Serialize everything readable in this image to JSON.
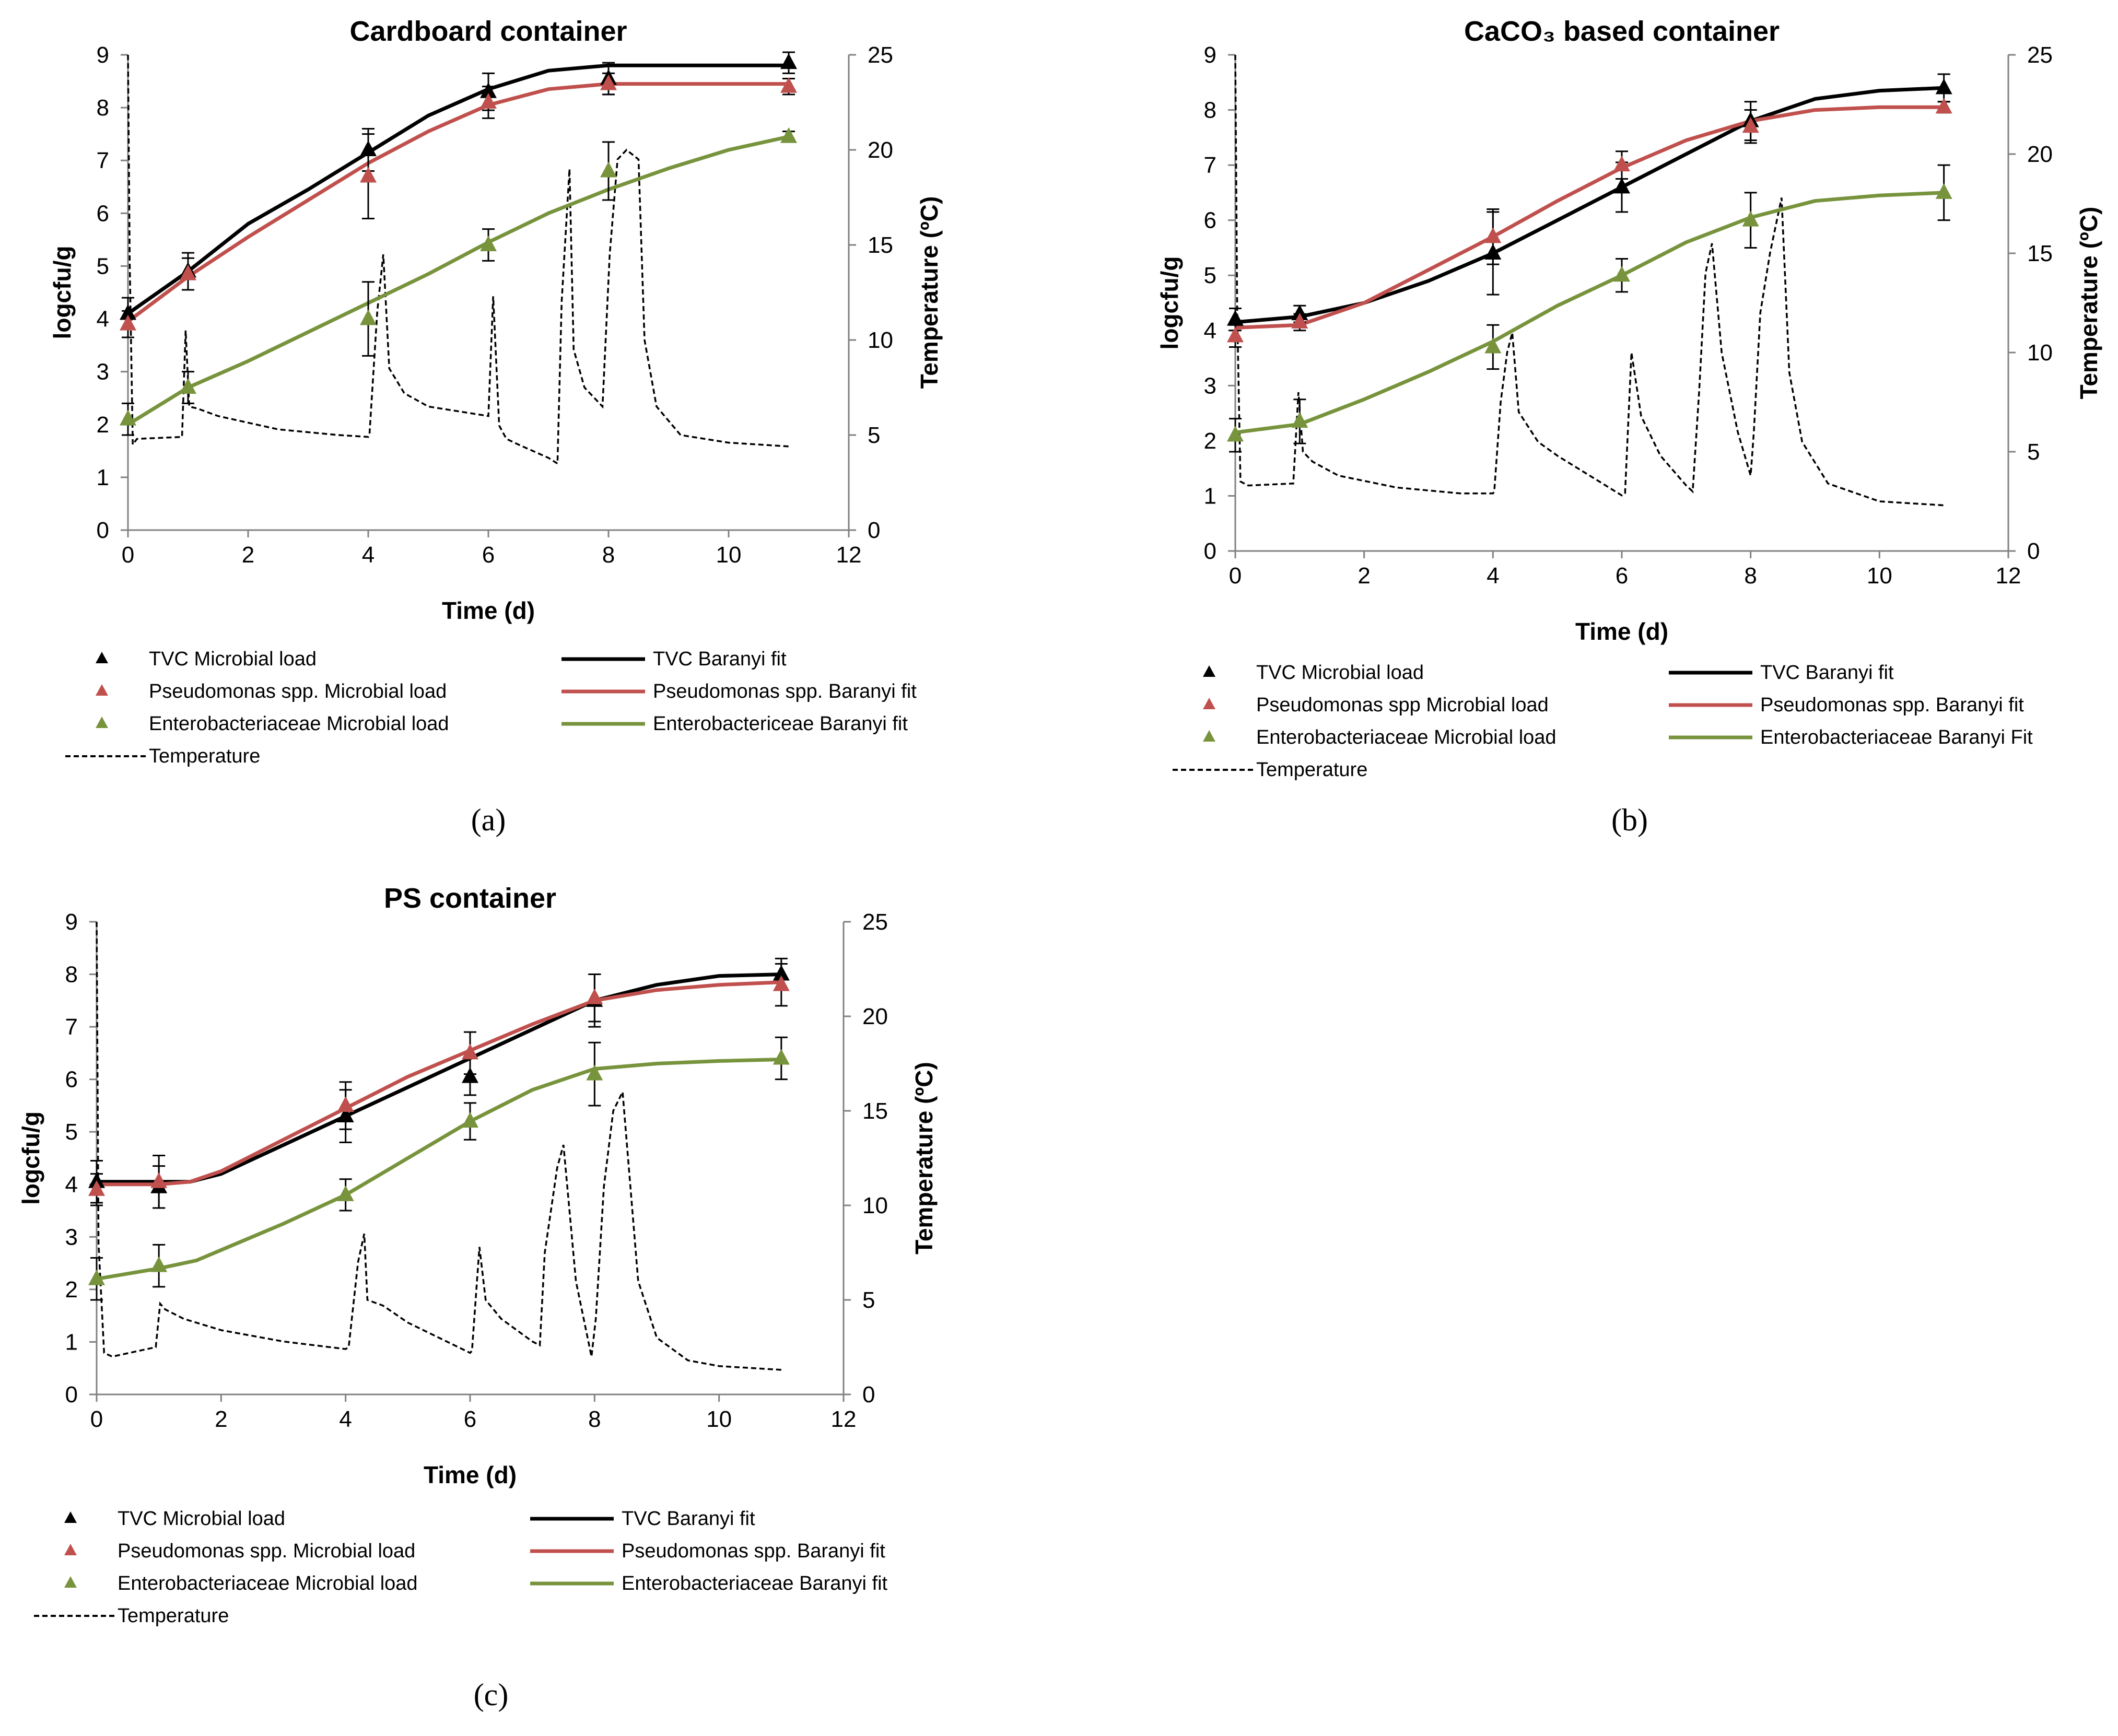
{
  "colors": {
    "tvc": "#000000",
    "pseudomonas": "#c0504d",
    "entero": "#77933c",
    "temperature": "#000000",
    "axis": "#808080"
  },
  "chart_data": [
    {
      "type": "line",
      "panel": "(a)",
      "title": "Cardboard container",
      "xlabel": "Time (d)",
      "ylabel": "logcfu/g",
      "y2label": "Temperature (ºC)",
      "xlim": [
        0,
        12
      ],
      "ylim": [
        0,
        9
      ],
      "y2lim": [
        0,
        25
      ],
      "x_ticks": [
        "0",
        "2",
        "4",
        "6",
        "8",
        "10",
        "12"
      ],
      "y_ticks": [
        "0",
        "1",
        "2",
        "3",
        "4",
        "5",
        "6",
        "7",
        "8",
        "9"
      ],
      "y2_ticks": [
        "0",
        "5",
        "10",
        "15",
        "20",
        "25"
      ],
      "x": [
        0,
        1,
        4,
        6,
        8,
        11
      ],
      "points": [
        {
          "name": "TVC Microbial load",
          "color": "#000000",
          "y": [
            4.1,
            4.9,
            7.2,
            8.3,
            8.55,
            8.85
          ],
          "err": [
            0.3,
            0.35,
            0.4,
            0.35,
            0.3,
            0.2
          ]
        },
        {
          "name": "Pseudomonas spp. Microbial load",
          "color": "#c0504d",
          "y": [
            3.9,
            4.85,
            6.7,
            8.1,
            8.45,
            8.4
          ],
          "err": [
            0.25,
            0.3,
            0.8,
            0.3,
            0.2,
            0.15
          ]
        },
        {
          "name": "Enterobacteriaceae Microbial load",
          "color": "#77933c",
          "y": [
            2.1,
            2.7,
            4.0,
            5.4,
            6.8,
            7.45
          ],
          "err": [
            0.3,
            0.3,
            0.7,
            0.3,
            0.55,
            0.1
          ]
        }
      ],
      "fits": [
        {
          "name": "TVC Baranyi fit",
          "color": "#000000",
          "x": [
            0,
            1,
            2,
            3,
            4,
            5,
            6,
            7,
            8,
            9,
            10,
            11
          ],
          "y": [
            4.1,
            4.9,
            5.8,
            6.45,
            7.15,
            7.85,
            8.35,
            8.7,
            8.8,
            8.8,
            8.8,
            8.8
          ]
        },
        {
          "name": "Pseudomonas spp. Baranyi fit",
          "color": "#c0504d",
          "x": [
            0,
            1,
            2,
            3,
            4,
            5,
            6,
            7,
            8,
            9,
            10,
            11
          ],
          "y": [
            3.95,
            4.8,
            5.55,
            6.25,
            6.95,
            7.55,
            8.05,
            8.35,
            8.45,
            8.45,
            8.45,
            8.45
          ]
        },
        {
          "name": "Enterobactericeae Baranyi fit",
          "color": "#77933c",
          "x": [
            0,
            1,
            2,
            3,
            4,
            5,
            6,
            7,
            8,
            9,
            10,
            11
          ],
          "y": [
            2.0,
            2.7,
            3.2,
            3.75,
            4.3,
            4.85,
            5.45,
            6.0,
            6.45,
            6.85,
            7.2,
            7.45
          ]
        }
      ],
      "temperature": {
        "name": "Temperature",
        "x": [
          0,
          0.03,
          0.08,
          0.15,
          0.9,
          0.96,
          1.02,
          1.15,
          1.5,
          2.5,
          3.5,
          4.0,
          4.02,
          4.15,
          4.25,
          4.35,
          4.6,
          5.0,
          6.0,
          6.08,
          6.18,
          6.3,
          6.5,
          7.0,
          7.15,
          7.22,
          7.35,
          7.42,
          7.6,
          7.9,
          8.02,
          8.15,
          8.3,
          8.5,
          8.6,
          8.8,
          9.2,
          10,
          11
        ],
        "y": [
          25,
          14,
          4.5,
          4.8,
          4.9,
          10.5,
          6.5,
          6.4,
          6.0,
          5.3,
          5.0,
          4.9,
          5.0,
          11.5,
          14.5,
          8.5,
          7.2,
          6.5,
          6.0,
          12.3,
          5.5,
          4.8,
          4.5,
          3.8,
          3.5,
          12.0,
          19.0,
          9.5,
          7.5,
          6.5,
          14.5,
          19.5,
          20.0,
          19.5,
          10.0,
          6.5,
          5.0,
          4.6,
          4.4
        ]
      }
    },
    {
      "type": "line",
      "panel": "(b)",
      "title": "CaCO₃ based container",
      "xlabel": "Time (d)",
      "ylabel": "logcfu/g",
      "y2label": "Temperature (ºC)",
      "xlim": [
        0,
        12
      ],
      "ylim": [
        0,
        9
      ],
      "y2lim": [
        0,
        25
      ],
      "x_ticks": [
        "0",
        "2",
        "4",
        "6",
        "8",
        "10",
        "12"
      ],
      "y_ticks": [
        "0",
        "1",
        "2",
        "3",
        "4",
        "5",
        "6",
        "7",
        "8",
        "9"
      ],
      "y2_ticks": [
        "0",
        "5",
        "10",
        "15",
        "20",
        "25"
      ],
      "x": [
        0,
        1,
        4,
        6,
        8,
        11
      ],
      "points": [
        {
          "name": "TVC Microbial load",
          "color": "#000000",
          "y": [
            4.2,
            4.3,
            5.4,
            6.6,
            7.8,
            8.4
          ],
          "err": [
            0.2,
            0.15,
            0.75,
            0.45,
            0.35,
            0.25
          ]
        },
        {
          "name": "Pseudomonas spp Microbial load",
          "color": "#c0504d",
          "y": [
            3.9,
            4.15,
            5.7,
            7.0,
            7.7,
            8.05
          ],
          "err": [
            0.2,
            0.15,
            0.5,
            0.25,
            0.3,
            0.1
          ]
        },
        {
          "name": "Enterobacteriaceae Microbial load",
          "color": "#77933c",
          "y": [
            2.1,
            2.35,
            3.7,
            5.0,
            6.0,
            6.5
          ],
          "err": [
            0.3,
            0.4,
            0.4,
            0.3,
            0.5,
            0.5
          ]
        }
      ],
      "fits": [
        {
          "name": "TVC Baranyi fit",
          "color": "#000000",
          "x": [
            0,
            1,
            2,
            3,
            4,
            5,
            6,
            7,
            8,
            9,
            10,
            11
          ],
          "y": [
            4.15,
            4.25,
            4.5,
            4.9,
            5.4,
            6.0,
            6.6,
            7.2,
            7.8,
            8.2,
            8.35,
            8.4
          ]
        },
        {
          "name": "Pseudomonas spp. Baranyi fit",
          "color": "#c0504d",
          "x": [
            0,
            1,
            2,
            3,
            4,
            5,
            6,
            7,
            8,
            9,
            10,
            11
          ],
          "y": [
            4.05,
            4.1,
            4.5,
            5.1,
            5.7,
            6.35,
            6.95,
            7.45,
            7.8,
            8.0,
            8.05,
            8.05
          ]
        },
        {
          "name": "Enterobacteriaceae Baranyi Fit",
          "color": "#77933c",
          "x": [
            0,
            1,
            2,
            3,
            4,
            5,
            6,
            7,
            8,
            9,
            10,
            11
          ],
          "y": [
            2.15,
            2.3,
            2.75,
            3.25,
            3.8,
            4.45,
            5.0,
            5.6,
            6.05,
            6.35,
            6.45,
            6.5
          ]
        }
      ],
      "temperature": {
        "name": "Temperature",
        "x": [
          0,
          0.03,
          0.08,
          0.2,
          0.9,
          0.98,
          1.05,
          1.2,
          1.6,
          2.5,
          3.5,
          4.0,
          4.02,
          4.12,
          4.22,
          4.3,
          4.4,
          4.7,
          5.0,
          5.6,
          6.0,
          6.05,
          6.15,
          6.3,
          6.6,
          7.0,
          7.1,
          7.2,
          7.3,
          7.4,
          7.55,
          7.8,
          8.0,
          8.05,
          8.15,
          8.3,
          8.48,
          8.6,
          8.8,
          9.2,
          10,
          11
        ],
        "y": [
          25,
          12,
          3.5,
          3.3,
          3.4,
          8.0,
          5.0,
          4.5,
          3.8,
          3.2,
          2.9,
          2.9,
          3.0,
          7.5,
          10.0,
          11.0,
          7.0,
          5.5,
          4.8,
          3.6,
          2.8,
          2.9,
          10.0,
          6.8,
          4.8,
          3.3,
          3.0,
          8.0,
          14.0,
          15.5,
          10.0,
          6.0,
          3.8,
          6.0,
          12.0,
          15.0,
          17.8,
          9.0,
          5.5,
          3.4,
          2.5,
          2.3
        ]
      }
    },
    {
      "type": "line",
      "panel": "(c)",
      "title": "PS container",
      "xlabel": "Time (d)",
      "ylabel": "logcfu/g",
      "y2label": "Temperature (ºC)",
      "xlim": [
        0,
        12
      ],
      "ylim": [
        0,
        9
      ],
      "y2lim": [
        0,
        25
      ],
      "x_ticks": [
        "0",
        "2",
        "4",
        "6",
        "8",
        "10",
        "12"
      ],
      "y_ticks": [
        "0",
        "1",
        "2",
        "3",
        "4",
        "5",
        "6",
        "7",
        "8",
        "9"
      ],
      "y2_ticks": [
        "0",
        "5",
        "10",
        "15",
        "20",
        "25"
      ],
      "x": [
        0,
        1,
        4,
        6,
        8,
        11
      ],
      "points": [
        {
          "name": "TVC Microbial load",
          "color": "#000000",
          "y": [
            4.05,
            3.95,
            5.3,
            6.05,
            7.5,
            8.0
          ],
          "err": [
            0.4,
            0.4,
            0.5,
            0.35,
            0.5,
            0.3
          ]
        },
        {
          "name": "Pseudomonas spp. Microbial load",
          "color": "#c0504d",
          "y": [
            3.9,
            4.05,
            5.5,
            6.5,
            7.55,
            7.8
          ],
          "err": [
            0.3,
            0.5,
            0.45,
            0.4,
            0.45,
            0.4
          ]
        },
        {
          "name": "Enterobacteriaceae Microbial load",
          "color": "#77933c",
          "y": [
            2.2,
            2.45,
            3.8,
            5.2,
            6.1,
            6.4
          ],
          "err": [
            0.4,
            0.4,
            0.3,
            0.35,
            0.6,
            0.4
          ]
        }
      ],
      "fits": [
        {
          "name": "TVC Baranyi fit",
          "color": "#000000",
          "x": [
            0,
            1,
            1.5,
            2,
            3,
            4,
            5,
            6,
            7,
            8,
            9,
            10,
            11
          ],
          "y": [
            4.05,
            4.05,
            4.05,
            4.2,
            4.75,
            5.3,
            5.85,
            6.4,
            6.95,
            7.5,
            7.8,
            7.97,
            8.0
          ]
        },
        {
          "name": "Pseudomonas spp. Baranyi fit",
          "color": "#c0504d",
          "x": [
            0,
            1,
            1.5,
            2,
            3,
            4,
            5,
            6,
            7,
            8,
            9,
            10,
            11
          ],
          "y": [
            4.0,
            4.0,
            4.05,
            4.25,
            4.85,
            5.45,
            6.05,
            6.55,
            7.05,
            7.5,
            7.7,
            7.8,
            7.85
          ]
        },
        {
          "name": "Enterobacteriaceae Baranyi fit",
          "color": "#77933c",
          "x": [
            0,
            1,
            1.6,
            2,
            3,
            4,
            5,
            6,
            7,
            8,
            9,
            10,
            11
          ],
          "y": [
            2.2,
            2.4,
            2.55,
            2.75,
            3.25,
            3.8,
            4.5,
            5.2,
            5.8,
            6.2,
            6.3,
            6.35,
            6.38
          ]
        }
      ],
      "temperature": {
        "name": "Temperature",
        "x": [
          0,
          0.03,
          0.12,
          0.25,
          0.95,
          1.02,
          1.1,
          1.4,
          2.0,
          3.0,
          4.0,
          4.05,
          4.2,
          4.3,
          4.35,
          4.6,
          5.0,
          5.5,
          6.0,
          6.03,
          6.15,
          6.25,
          6.5,
          7.0,
          7.12,
          7.2,
          7.4,
          7.5,
          7.7,
          7.95,
          8.02,
          8.15,
          8.3,
          8.45,
          8.55,
          8.7,
          9.0,
          9.5,
          10,
          11
        ],
        "y": [
          25,
          8,
          2.2,
          2.0,
          2.5,
          4.8,
          4.5,
          4.0,
          3.4,
          2.8,
          2.4,
          2.5,
          7.0,
          8.5,
          5.0,
          4.7,
          3.8,
          3.0,
          2.2,
          2.3,
          7.8,
          5.0,
          4.0,
          2.8,
          2.6,
          7.5,
          12.0,
          13.2,
          6.0,
          2.0,
          4.0,
          11.0,
          15.0,
          16.0,
          12.0,
          6.0,
          3.0,
          1.8,
          1.5,
          1.3
        ]
      }
    }
  ],
  "legends": [
    [
      {
        "type": "marker",
        "color": "#000000",
        "label": "TVC Microbial load"
      },
      {
        "type": "line",
        "color": "#000000",
        "label": "TVC Baranyi fit"
      },
      {
        "type": "marker",
        "color": "#c0504d",
        "label": "Pseudomonas spp. Microbial load"
      },
      {
        "type": "line",
        "color": "#c0504d",
        "label": "Pseudomonas spp. Baranyi fit"
      },
      {
        "type": "marker",
        "color": "#77933c",
        "label": "Enterobacteriaceae Microbial load"
      },
      {
        "type": "line",
        "color": "#77933c",
        "label": "Enterobactericeae Baranyi fit"
      },
      {
        "type": "dash",
        "color": "#000000",
        "label": "Temperature"
      }
    ],
    [
      {
        "type": "marker",
        "color": "#000000",
        "label": "TVC Microbial load"
      },
      {
        "type": "line",
        "color": "#000000",
        "label": "TVC Baranyi fit"
      },
      {
        "type": "marker",
        "color": "#c0504d",
        "label": "Pseudomonas spp Microbial load"
      },
      {
        "type": "line",
        "color": "#c0504d",
        "label": "Pseudomonas spp. Baranyi fit"
      },
      {
        "type": "marker",
        "color": "#77933c",
        "label": "Enterobacteriaceae Microbial load"
      },
      {
        "type": "line",
        "color": "#77933c",
        "label": "Enterobacteriaceae Baranyi Fit"
      },
      {
        "type": "dash",
        "color": "#000000",
        "label": "Temperature"
      }
    ],
    [
      {
        "type": "marker",
        "color": "#000000",
        "label": "TVC Microbial load"
      },
      {
        "type": "line",
        "color": "#000000",
        "label": "TVC Baranyi fit"
      },
      {
        "type": "marker",
        "color": "#c0504d",
        "label": "Pseudomonas spp. Microbial load"
      },
      {
        "type": "line",
        "color": "#c0504d",
        "label": "Pseudomonas spp. Baranyi fit"
      },
      {
        "type": "marker",
        "color": "#77933c",
        "label": "Enterobacteriaceae Microbial load"
      },
      {
        "type": "line",
        "color": "#77933c",
        "label": "Enterobacteriaceae Baranyi fit"
      },
      {
        "type": "dash",
        "color": "#000000",
        "label": "Temperature"
      }
    ]
  ]
}
